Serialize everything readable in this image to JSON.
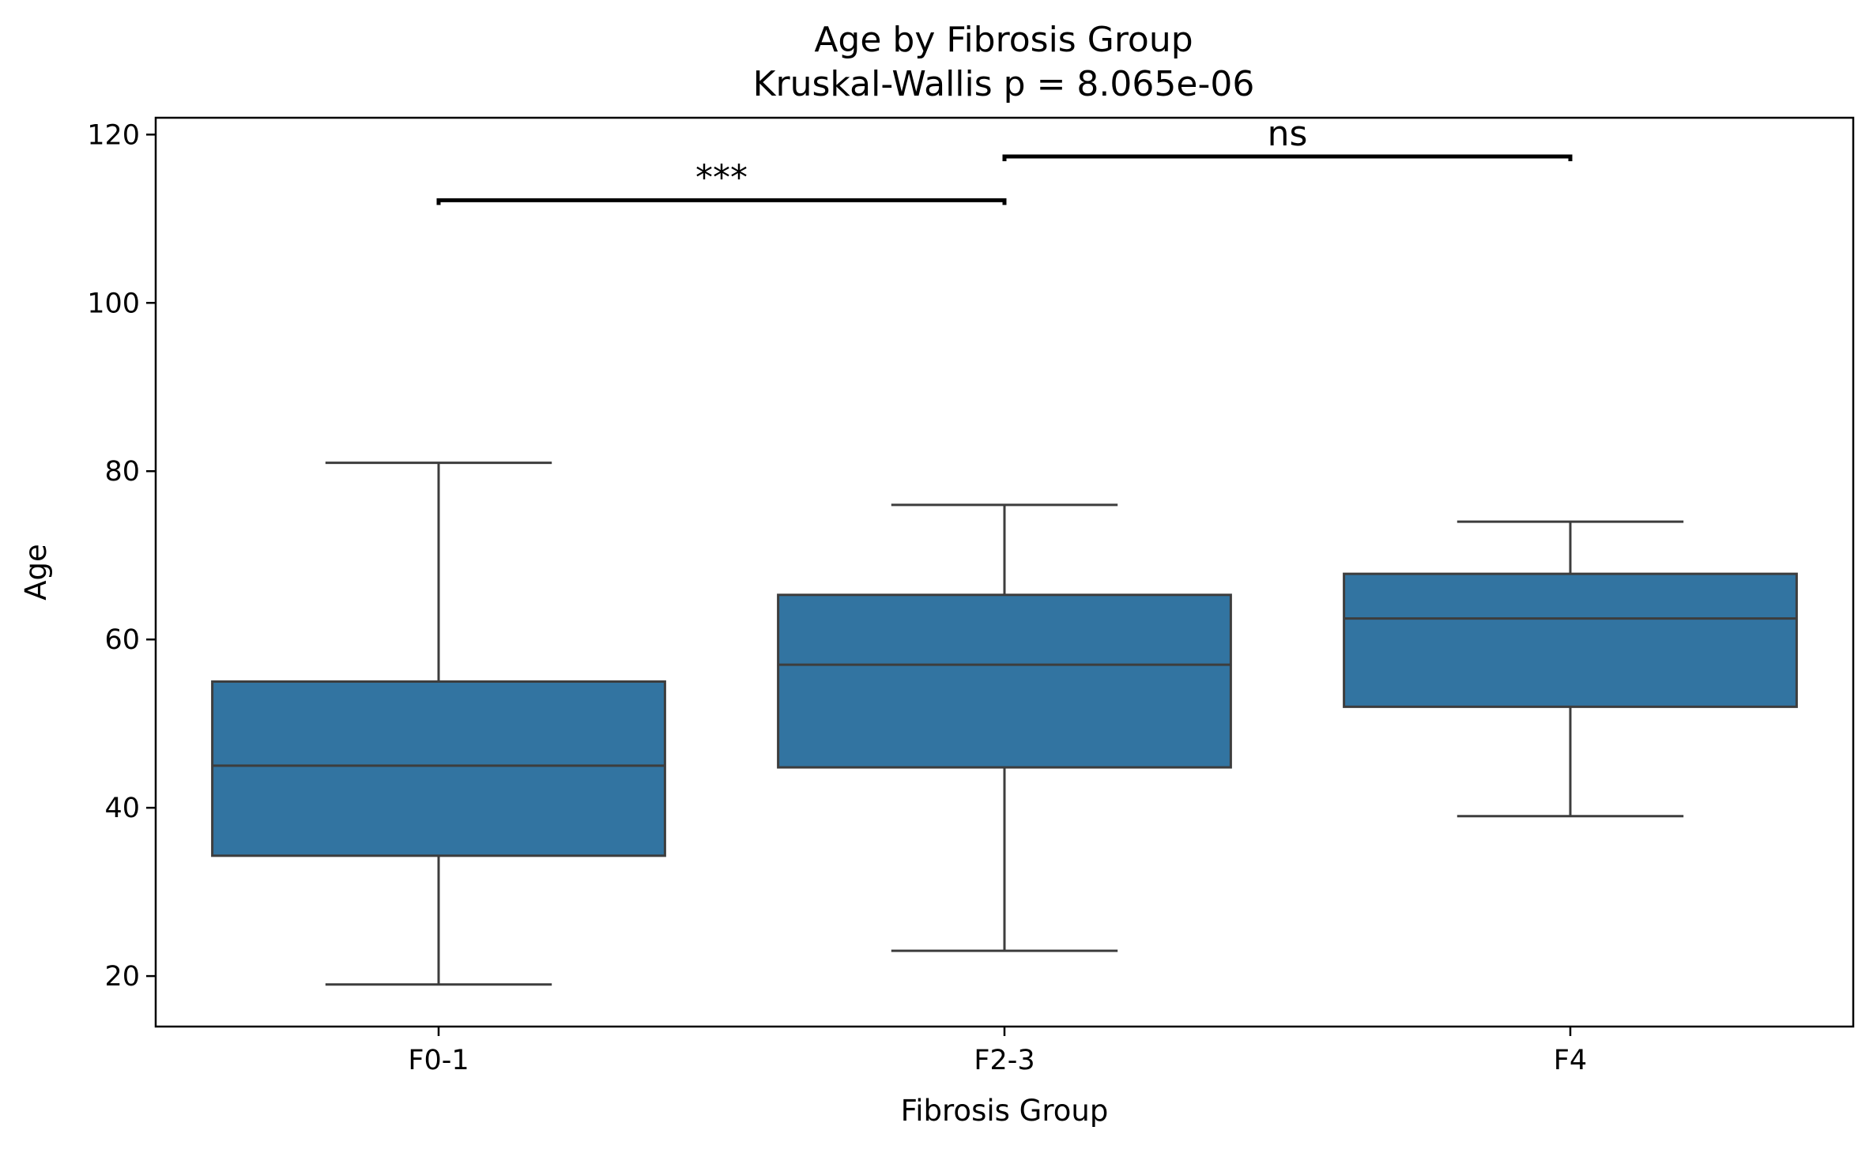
{
  "chart_data": {
    "type": "box",
    "title": "Age by Fibrosis Group",
    "subtitle": "Kruskal-Wallis p = 8.065e-06",
    "xlabel": "Fibrosis Group",
    "ylabel": "Age",
    "ylim": [
      14,
      122
    ],
    "yticks": [
      20,
      40,
      60,
      80,
      100,
      120
    ],
    "categories": [
      "F0-1",
      "F2-3",
      "F4"
    ],
    "box_color": "#3274a1",
    "edge_color": "#3d3d3d",
    "boxes": [
      {
        "category": "F0-1",
        "whisker_low": 19,
        "q1": 34.3,
        "median": 45,
        "q3": 55,
        "whisker_high": 81
      },
      {
        "category": "F2-3",
        "whisker_low": 23,
        "q1": 44.8,
        "median": 57,
        "q3": 65.3,
        "whisker_high": 76
      },
      {
        "category": "F4",
        "whisker_low": 39,
        "q1": 52,
        "median": 62.5,
        "q3": 67.8,
        "whisker_high": 74
      }
    ],
    "annotations": [
      {
        "from": "F0-1",
        "to": "F2-3",
        "y": 112.2,
        "label": "***"
      },
      {
        "from": "F2-3",
        "to": "F4",
        "y": 117.4,
        "label": "ns"
      }
    ],
    "grid": false,
    "legend": "none"
  }
}
